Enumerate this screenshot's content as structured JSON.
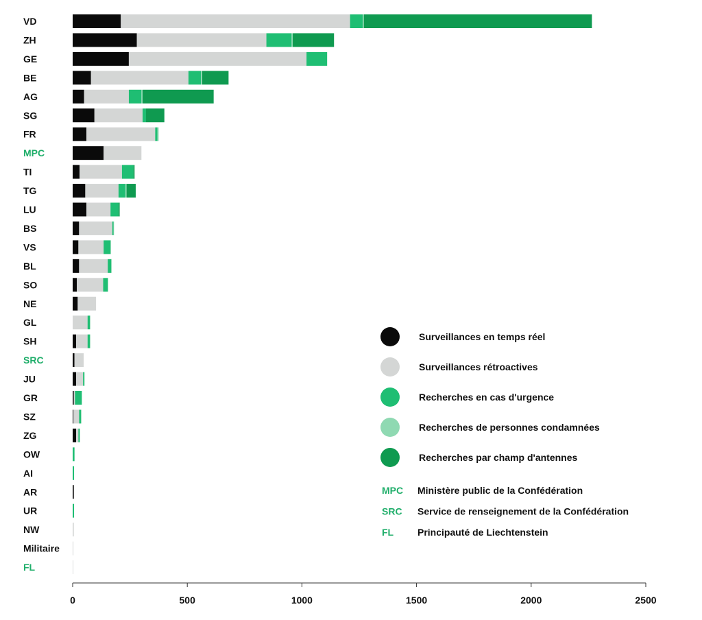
{
  "chart_data": {
    "type": "bar",
    "orientation": "horizontal",
    "stacked": true,
    "title": "",
    "xlabel": "",
    "ylabel": "",
    "xlim": [
      0,
      2500
    ],
    "xticks": [
      "0",
      "500",
      "1000",
      "1500",
      "2000",
      "2500"
    ],
    "grid": false,
    "legend_position": "center-right",
    "categories": [
      "VD",
      "ZH",
      "GE",
      "BE",
      "AG",
      "SG",
      "FR",
      "MPC",
      "TI",
      "TG",
      "LU",
      "BS",
      "VS",
      "BL",
      "SO",
      "NE",
      "GL",
      "SH",
      "SRC",
      "JU",
      "GR",
      "SZ",
      "ZG",
      "OW",
      "AI",
      "AR",
      "UR",
      "NW",
      "Militaire",
      "FL"
    ],
    "highlighted_categories": [
      "MPC",
      "SRC",
      "FL"
    ],
    "series": [
      {
        "name": "Surveillances en temps réel",
        "color": "#0a0a0a",
        "values": [
          210,
          280,
          245,
          80,
          50,
          95,
          60,
          135,
          30,
          55,
          60,
          28,
          25,
          28,
          18,
          22,
          0,
          15,
          8,
          15,
          5,
          3,
          15,
          0,
          0,
          5,
          0,
          0,
          0,
          0
        ]
      },
      {
        "name": "Surveillances rétroactives",
        "color": "#d4d6d5",
        "values": [
          1000,
          565,
          775,
          425,
          195,
          210,
          300,
          165,
          185,
          145,
          105,
          145,
          110,
          125,
          115,
          80,
          65,
          50,
          40,
          30,
          5,
          25,
          10,
          0,
          0,
          0,
          0,
          5,
          3,
          2
        ]
      },
      {
        "name": "Recherches en cas d'urgence",
        "color": "#1fbe73",
        "values": [
          55,
          110,
          90,
          55,
          55,
          15,
          10,
          0,
          50,
          30,
          35,
          5,
          30,
          15,
          20,
          0,
          10,
          10,
          0,
          5,
          30,
          8,
          5,
          8,
          6,
          0,
          6,
          0,
          0,
          0
        ]
      },
      {
        "name": "Recherches de personnes condamnées",
        "color": "#8fd9b2",
        "values": [
          5,
          5,
          0,
          5,
          5,
          0,
          5,
          0,
          0,
          5,
          0,
          2,
          2,
          2,
          2,
          0,
          2,
          2,
          0,
          2,
          0,
          2,
          2,
          0,
          0,
          0,
          0,
          0,
          0,
          0
        ]
      },
      {
        "name": "Recherches par champ d'antennes",
        "color": "#0f9a50",
        "values": [
          995,
          180,
          0,
          115,
          310,
          80,
          0,
          0,
          5,
          40,
          5,
          0,
          0,
          0,
          0,
          0,
          0,
          0,
          0,
          0,
          0,
          0,
          0,
          0,
          0,
          0,
          0,
          0,
          0,
          0
        ]
      }
    ]
  },
  "legend_abbreviations": [
    {
      "code": "MPC",
      "text": "Ministère public de la Confédération"
    },
    {
      "code": "SRC",
      "text": "Service de renseignement de la Confédération"
    },
    {
      "code": "FL",
      "text": "Principauté de Liechtenstein"
    }
  ],
  "colors": {
    "label": "#111111",
    "highlight": "#1fae6a",
    "axis": "#333333"
  }
}
